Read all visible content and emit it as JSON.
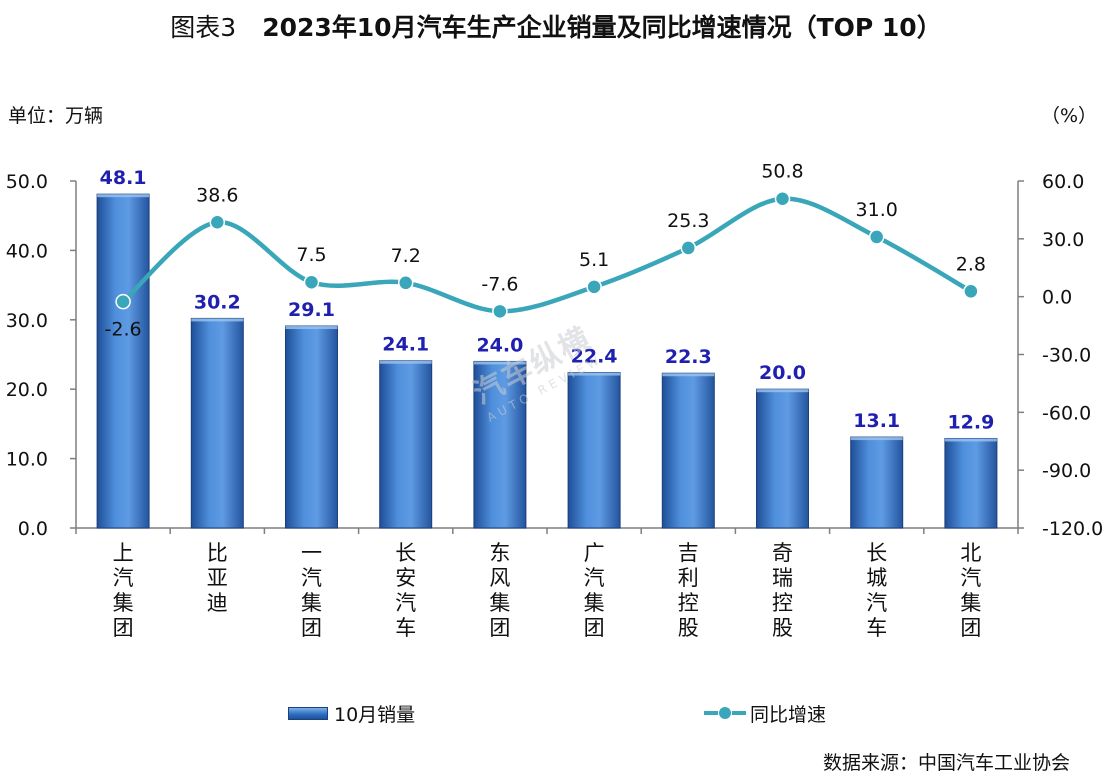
{
  "title": {
    "figure": "图表3",
    "main": "2023年10月汽车生产企业销量及同比增速情况（TOP 10）"
  },
  "unit_left": "单位：万辆",
  "unit_right": "（%）",
  "source": "数据来源：中国汽车工业协会",
  "watermark": {
    "main": "汽车纵横",
    "sub": "AUTO REVIEW"
  },
  "legend": {
    "bar": "10月销量",
    "line": "同比增速"
  },
  "chart_data": {
    "type": "bar",
    "categories": [
      "上汽集团",
      "比亚迪",
      "一汽集团",
      "长安汽车",
      "东风集团",
      "广汽集团",
      "吉利控股",
      "奇瑞控股",
      "长城汽车",
      "北汽集团"
    ],
    "series": [
      {
        "name": "10月销量",
        "type": "bar",
        "axis": "left",
        "values": [
          48.1,
          30.2,
          29.1,
          24.1,
          24.0,
          22.4,
          22.3,
          20.0,
          13.1,
          12.9
        ]
      },
      {
        "name": "同比增速",
        "type": "line",
        "axis": "right",
        "values": [
          -2.6,
          38.6,
          7.5,
          7.2,
          -7.6,
          5.1,
          25.3,
          50.8,
          31.0,
          2.8
        ]
      }
    ],
    "y_left": {
      "min": 0,
      "max": 50,
      "step": 10,
      "tick_labels": [
        "0.0",
        "10.0",
        "20.0",
        "30.0",
        "40.0",
        "50.0"
      ]
    },
    "y_right": {
      "min": -120,
      "max": 60,
      "step": 30,
      "tick_labels": [
        "-120.0",
        "-90.0",
        "-60.0",
        "-30.0",
        "0.0",
        "30.0",
        "60.0"
      ]
    },
    "grid": false,
    "legend_position": "bottom",
    "colors": {
      "bar": "#2e6fc4",
      "bar_label": "#1f1fb0",
      "line": "#3aa6b9",
      "axis": "#7f7f7f"
    }
  }
}
